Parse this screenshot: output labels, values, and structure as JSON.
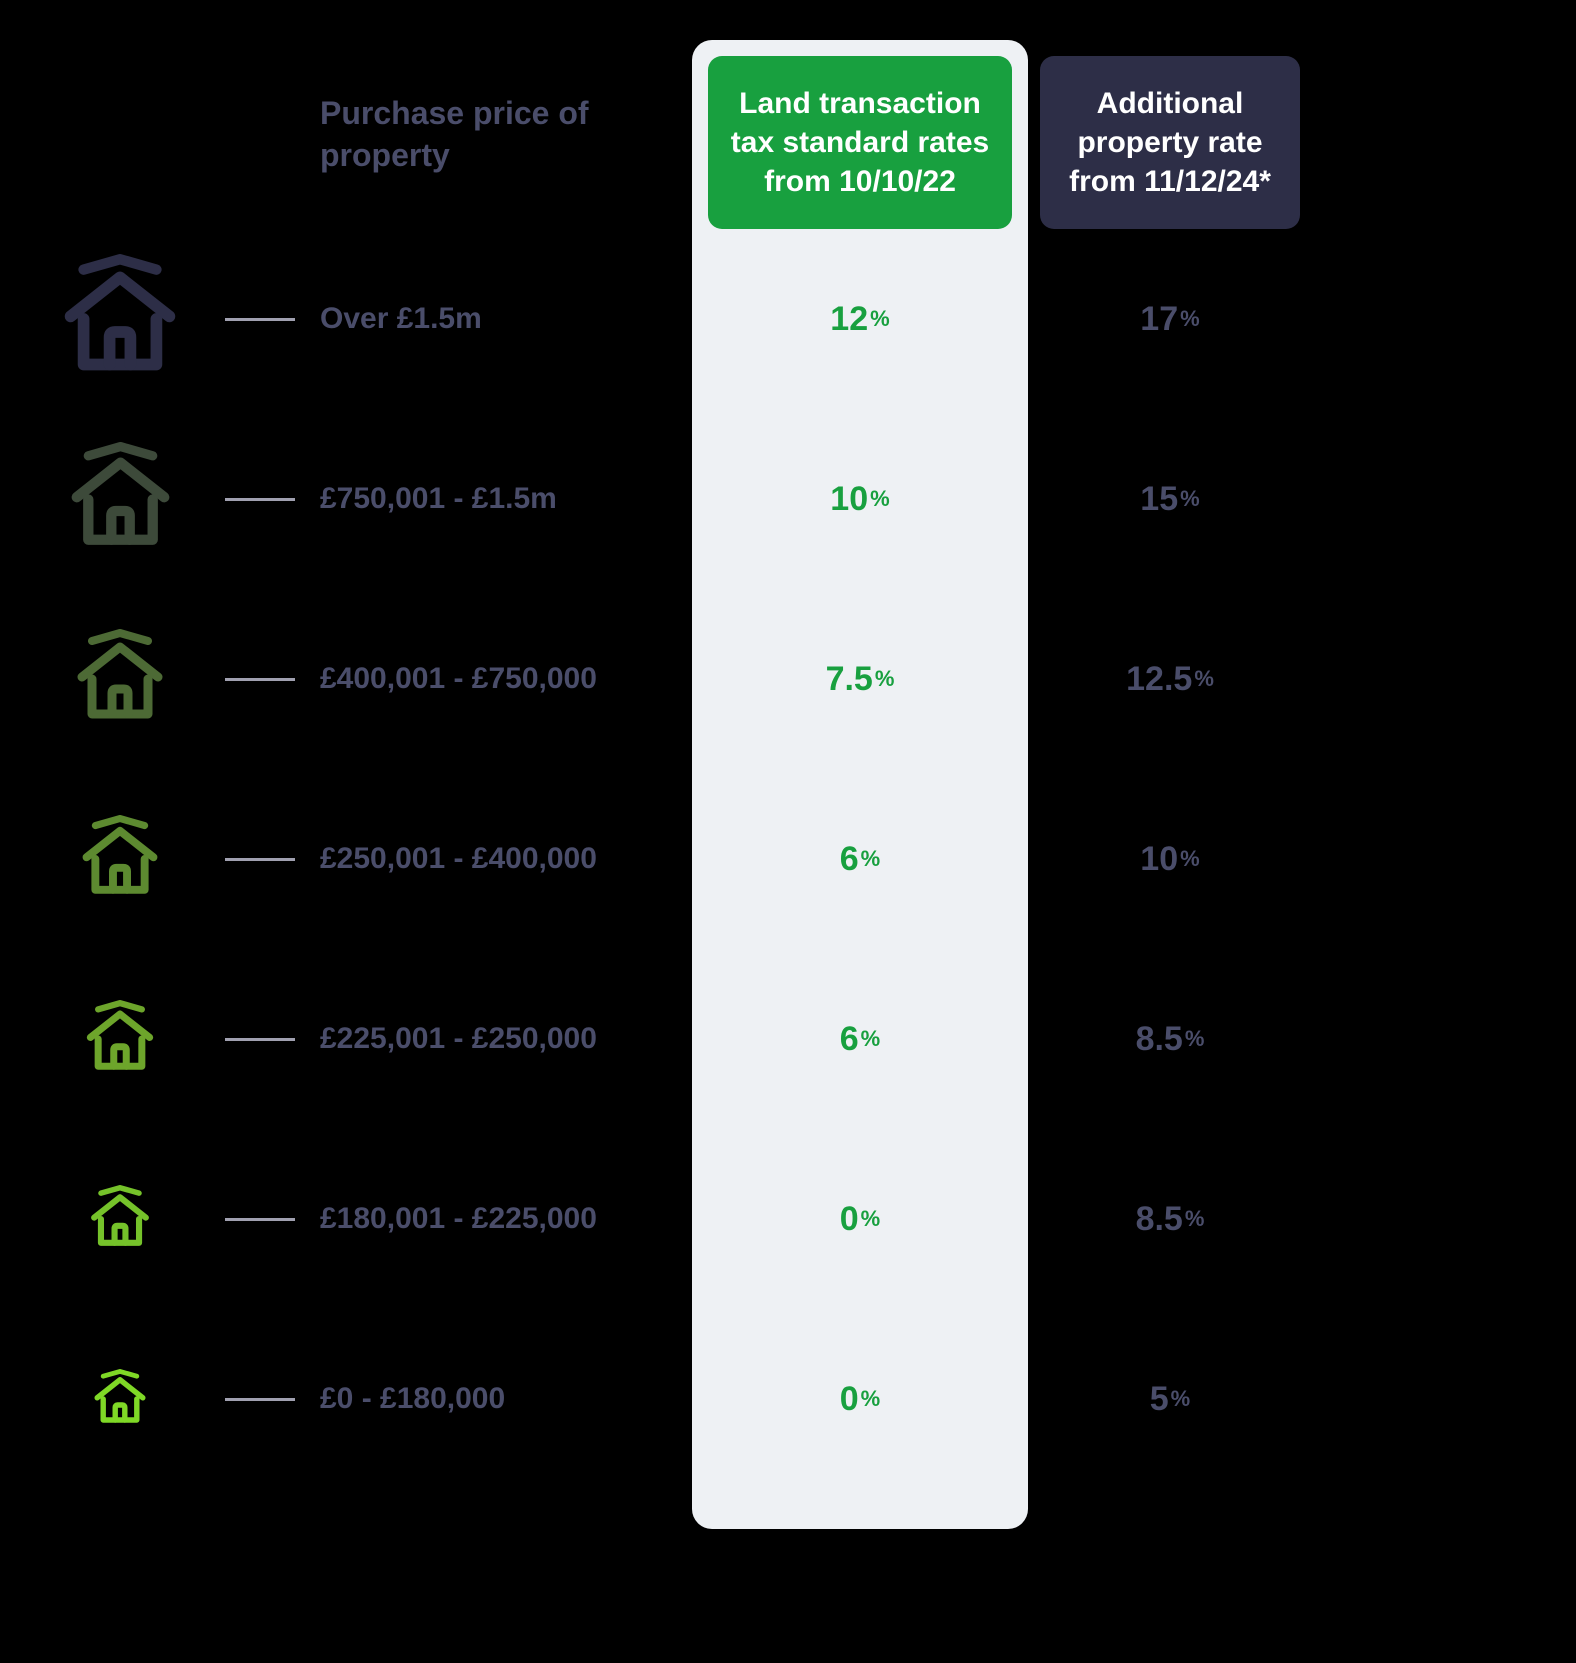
{
  "type": "table",
  "headers": {
    "price": "Purchase price\nof property",
    "standard": "Land transaction tax standard rates from 10/10/22",
    "additional": "Additional property rate from 11/12/24*"
  },
  "header_colors": {
    "price_text": "#4a4d6a",
    "standard_bg": "#18a03f",
    "standard_text": "#ffffff",
    "additional_bg": "#2d2e47",
    "additional_text": "#ffffff"
  },
  "column_bg": {
    "standard": "#eef1f4"
  },
  "value_colors": {
    "standard": "#18a03f",
    "additional": "#4a4d6a",
    "price_text": "#4a4d6a"
  },
  "rows": [
    {
      "price": "Over £1.5m",
      "standard": "12",
      "additional": "17",
      "icon_color": "#2d2e47",
      "icon_size": 130
    },
    {
      "price": "£750,001 - £1.5m",
      "standard": "10",
      "additional": "15",
      "icon_color": "#3d4a3a",
      "icon_size": 115
    },
    {
      "price": "£400,001 - £750,000",
      "standard": "7.5",
      "additional": "12.5",
      "icon_color": "#4d6a35",
      "icon_size": 100
    },
    {
      "price": "£250,001 - £400,000",
      "standard": "6",
      "additional": "10",
      "icon_color": "#5d8a30",
      "icon_size": 88
    },
    {
      "price": "£225,001 - £250,000",
      "standard": "6",
      "additional": "8.5",
      "icon_color": "#6da52b",
      "icon_size": 78
    },
    {
      "price": "£180,001 - £225,000",
      "standard": "0",
      "additional": "8.5",
      "icon_color": "#75c22a",
      "icon_size": 68
    },
    {
      "price": "£0 - £180,000",
      "standard": "0",
      "additional": "5",
      "icon_color": "#7fd826",
      "icon_size": 60
    }
  ],
  "background_color": "#000000",
  "connector_color": "#a0a0b0",
  "font_sizes": {
    "header": 30,
    "price": 30,
    "rate_number": 34,
    "rate_percent": 22
  }
}
